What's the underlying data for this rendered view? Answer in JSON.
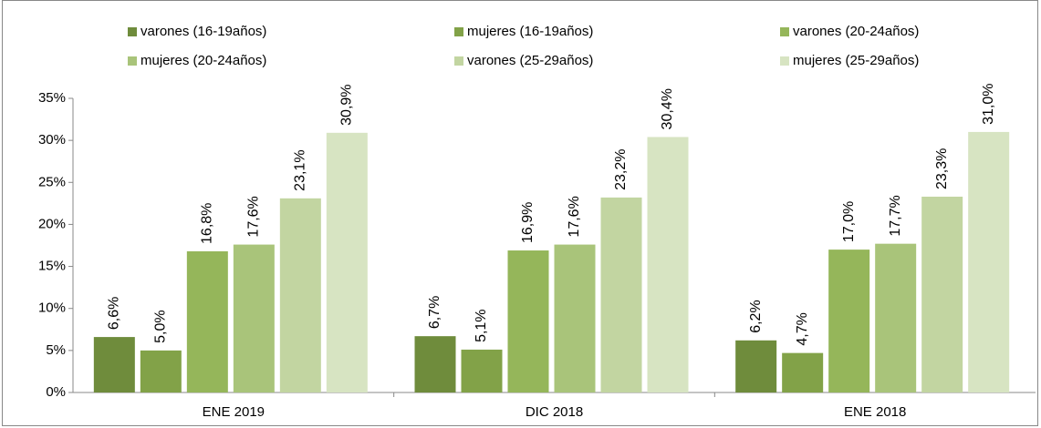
{
  "chart_data": {
    "type": "bar",
    "categories": [
      "ENE 2019",
      "DIC 2018",
      "ENE 2018"
    ],
    "series": [
      {
        "name": "varones (16-19años)",
        "color": "#6f8c3c",
        "values": [
          6.6,
          6.7,
          6.2
        ],
        "value_labels": [
          "6,6%",
          "6,7%",
          "6,2%"
        ]
      },
      {
        "name": "mujeres (16-19años)",
        "color": "#82a248",
        "values": [
          5.0,
          5.1,
          4.7
        ],
        "value_labels": [
          "5,0%",
          "5,1%",
          "4,7%"
        ]
      },
      {
        "name": "varones (20-24años)",
        "color": "#95b65a",
        "values": [
          16.8,
          16.9,
          17.0
        ],
        "value_labels": [
          "16,8%",
          "16,9%",
          "17,0%"
        ]
      },
      {
        "name": "mujeres (20-24años)",
        "color": "#a9c47a",
        "values": [
          17.6,
          17.6,
          17.7
        ],
        "value_labels": [
          "17,6%",
          "17,6%",
          "17,7%"
        ]
      },
      {
        "name": "varones (25-29años)",
        "color": "#c2d5a1",
        "values": [
          23.1,
          23.2,
          23.3
        ],
        "value_labels": [
          "23,1%",
          "23,2%",
          "23,3%"
        ]
      },
      {
        "name": "mujeres (25-29años)",
        "color": "#d7e4c2",
        "values": [
          30.9,
          30.4,
          31.0
        ],
        "value_labels": [
          "30,9%",
          "30,4%",
          "31,0%"
        ]
      }
    ],
    "ylim": [
      0,
      35
    ],
    "yticks": [
      {
        "value": 0,
        "label": "0%"
      },
      {
        "value": 5,
        "label": "5%"
      },
      {
        "value": 10,
        "label": "10%"
      },
      {
        "value": 15,
        "label": "15%"
      },
      {
        "value": 20,
        "label": "20%"
      },
      {
        "value": 25,
        "label": "25%"
      },
      {
        "value": 30,
        "label": "30%"
      },
      {
        "value": 35,
        "label": "35%"
      }
    ],
    "grid": false,
    "legend": "top"
  }
}
